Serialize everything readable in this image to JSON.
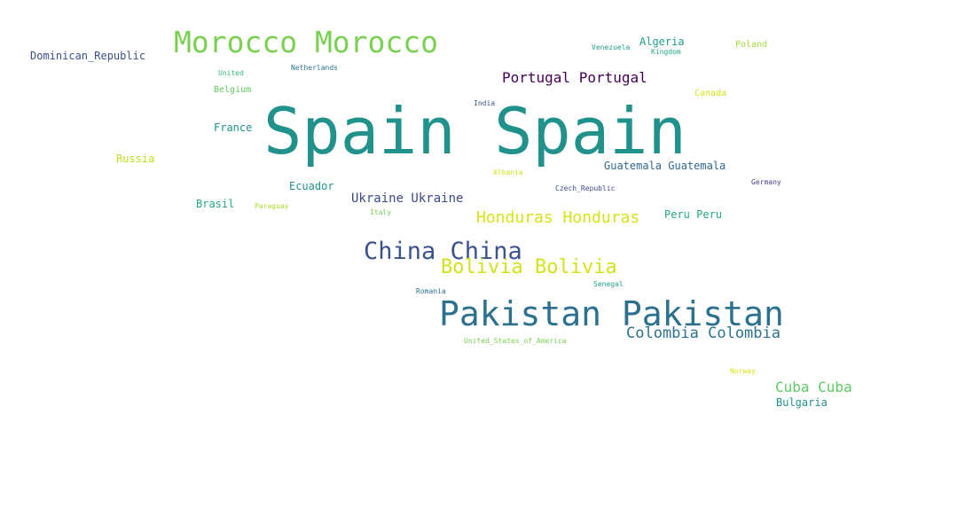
{
  "words": [
    {
      "text": "Spain Spain",
      "color": "#21918c"
    },
    {
      "text": "Pakistan Pakistan",
      "color": "#2c728e"
    },
    {
      "text": "Morocco Morocco",
      "color": "#7ad151"
    },
    {
      "text": "China China",
      "color": "#3b528b"
    },
    {
      "text": "Bolivia Bolivia",
      "color": "#d2e21b"
    },
    {
      "text": "Honduras Honduras",
      "color": "#d8e219"
    },
    {
      "text": "Colombia Colombia",
      "color": "#2c728e"
    },
    {
      "text": "Portugal Portugal",
      "color": "#440154"
    },
    {
      "text": "Cuba Cuba",
      "color": "#5ec962"
    },
    {
      "text": "Ukraine Ukraine",
      "color": "#3e4989"
    },
    {
      "text": "Guatemala Guatemala",
      "color": "#31688e"
    },
    {
      "text": "Peru Peru",
      "color": "#22a884"
    },
    {
      "text": "Dominican_Republic",
      "color": "#3b528b"
    },
    {
      "text": "Algeria",
      "color": "#1f9e89"
    },
    {
      "text": "Bulgaria",
      "color": "#21918c"
    },
    {
      "text": "Ecuador",
      "color": "#21918c"
    },
    {
      "text": "Brasil",
      "color": "#22a884"
    },
    {
      "text": "France",
      "color": "#21918c"
    },
    {
      "text": "Russia",
      "color": "#bddf26"
    },
    {
      "text": "Belgium",
      "color": "#5ec962"
    },
    {
      "text": "Poland",
      "color": "#a0da39"
    },
    {
      "text": "Canada",
      "color": "#d2e21b"
    },
    {
      "text": "Venezuela",
      "color": "#1f9e89"
    },
    {
      "text": "Kingdom",
      "color": "#22a884"
    },
    {
      "text": "United",
      "color": "#35b779"
    },
    {
      "text": "Netherlands",
      "color": "#2c728e"
    },
    {
      "text": "India",
      "color": "#3b528b"
    },
    {
      "text": "Albania",
      "color": "#d2e21b"
    },
    {
      "text": "Czech_Republic",
      "color": "#3e4989"
    },
    {
      "text": "Germany",
      "color": "#433e85"
    },
    {
      "text": "Paraguay",
      "color": "#addc30"
    },
    {
      "text": "Italy",
      "color": "#7ad151"
    },
    {
      "text": "Romania",
      "color": "#2c728e"
    },
    {
      "text": "Senegal",
      "color": "#1f9e89"
    },
    {
      "text": "United_States_of_America",
      "color": "#7ad151"
    },
    {
      "text": "Norway",
      "color": "#d8e219"
    }
  ]
}
